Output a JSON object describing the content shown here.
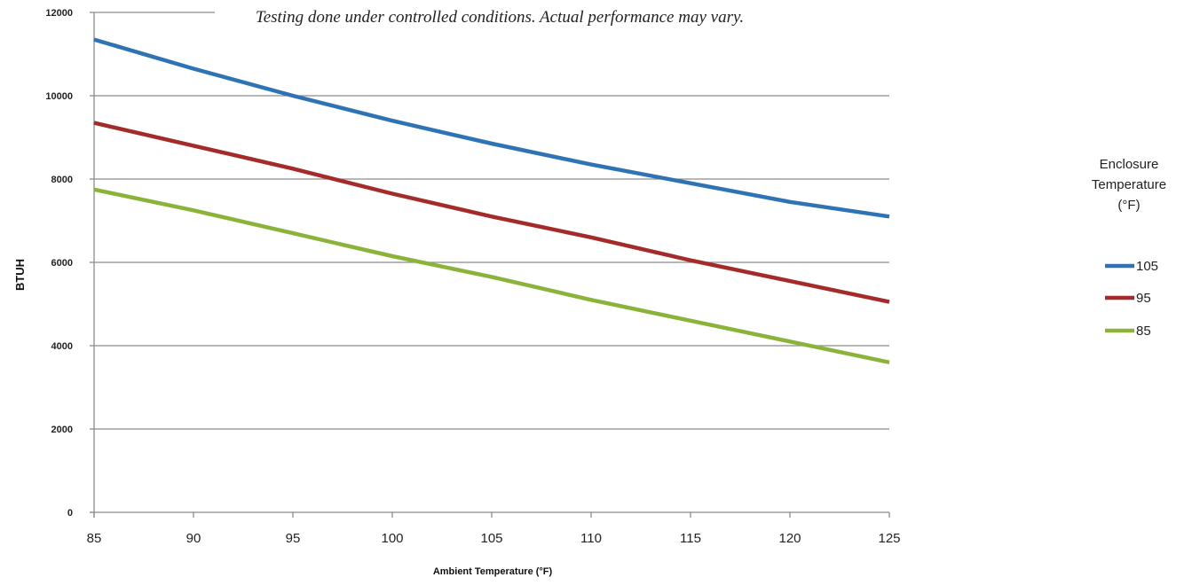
{
  "chart_data": {
    "type": "line",
    "title": "",
    "annotation": "Testing done under controlled conditions. Actual performance may vary.",
    "xlabel": "Ambient Temperature (°F)",
    "ylabel": "BTUH",
    "xlim": [
      85,
      125
    ],
    "ylim": [
      0,
      12000
    ],
    "xticks": [
      85,
      90,
      95,
      100,
      105,
      110,
      115,
      120,
      125
    ],
    "yticks": [
      0,
      2000,
      4000,
      6000,
      8000,
      10000,
      12000
    ],
    "grid": "horizontal",
    "legend_title": "Enclosure Temperature (°F)",
    "legend_title_lines": [
      "Enclosure",
      "Temperature",
      "(°F)"
    ],
    "legend_position": "right",
    "series": [
      {
        "name": "105",
        "color": "#2e74b5",
        "x": [
          85,
          90,
          95,
          100,
          105,
          110,
          115,
          120,
          125
        ],
        "y": [
          11350,
          10650,
          10000,
          9400,
          8850,
          8350,
          7900,
          7450,
          7100
        ]
      },
      {
        "name": "95",
        "color": "#a52a2a",
        "x": [
          85,
          90,
          95,
          100,
          105,
          110,
          115,
          120,
          125
        ],
        "y": [
          9350,
          8800,
          8250,
          7650,
          7100,
          6600,
          6050,
          5550,
          5050
        ]
      },
      {
        "name": "85",
        "color": "#8bb339",
        "x": [
          85,
          90,
          95,
          100,
          105,
          110,
          115,
          120,
          125
        ],
        "y": [
          7750,
          7250,
          6700,
          6150,
          5650,
          5100,
          4600,
          4100,
          3600
        ]
      }
    ]
  }
}
